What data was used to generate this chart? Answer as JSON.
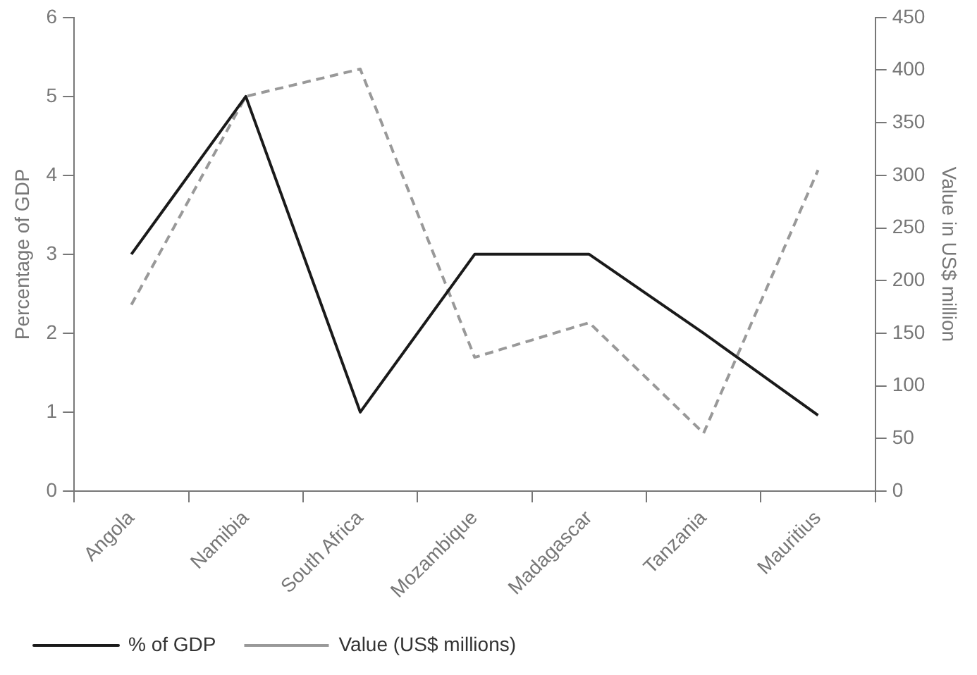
{
  "chart_data": {
    "type": "line",
    "categories": [
      "Angola",
      "Namibia",
      "South Africa",
      "Mozambique",
      "Madagascar",
      "Tanzania",
      "Mauritius"
    ],
    "ylabel": "Percentage of GDP",
    "y2label": "Value in US$ million",
    "ylim": [
      0,
      6
    ],
    "yticks": [
      0,
      1,
      2,
      3,
      4,
      5,
      6
    ],
    "y2lim": [
      0,
      450
    ],
    "y2ticks": [
      0,
      50,
      100,
      150,
      200,
      250,
      300,
      350,
      400,
      450
    ],
    "grid": false,
    "legend": "bottom",
    "marker": "none",
    "series": [
      {
        "name": "% of GDP",
        "color": "#1a1a1a",
        "line_style": "solid",
        "values": [
          3,
          5,
          1,
          3,
          3,
          2,
          0.96
        ]
      },
      {
        "name": "Value (US$ millions)",
        "color": "#999999",
        "line_style": "dashed",
        "axis": "y2",
        "values": [
          177,
          375,
          401,
          127,
          160,
          55,
          305
        ]
      }
    ]
  }
}
